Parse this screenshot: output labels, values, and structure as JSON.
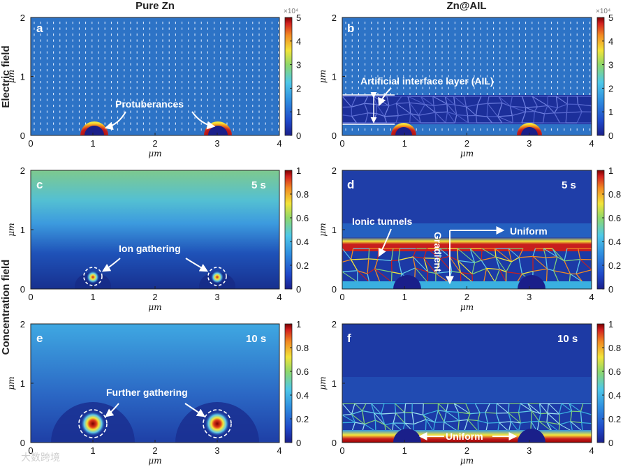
{
  "figure": {
    "column_titles": [
      "Pure Zn",
      "Zn@AIL"
    ],
    "row_labels": [
      "Electric field",
      "Concentration field"
    ],
    "watermark": "大数跨境"
  },
  "colors": {
    "bg_low": "#1f3ea8",
    "bg_mid": "#2e78c8",
    "light_blue": "#5fc8e8",
    "green": "#7ed07a",
    "yellow": "#f5e63a",
    "red": "#c81e1e",
    "dark_red": "#7a0000",
    "dark_navy": "#101f80"
  },
  "chart_data": [
    {
      "type": "heatmap",
      "panel": "a",
      "field": "electric",
      "xlabel": "μm",
      "ylabel": "μm",
      "xlim": [
        0,
        4
      ],
      "ylim": [
        0,
        2
      ],
      "xticks": [
        "0",
        "1",
        "2",
        "3",
        "4"
      ],
      "yticks": [
        "0",
        "1",
        "2"
      ],
      "colorbar": {
        "ticks": [
          "0",
          "1",
          "2",
          "3",
          "4",
          "5"
        ],
        "range": [
          0,
          5
        ],
        "exponent": "×10⁴"
      },
      "protuberance_centers": [
        1,
        3
      ],
      "annotations": [
        {
          "text": "Protuberances"
        }
      ]
    },
    {
      "type": "heatmap",
      "panel": "b",
      "field": "electric",
      "xlabel": "μm",
      "ylabel": "μm",
      "xlim": [
        0,
        4
      ],
      "ylim": [
        0,
        2
      ],
      "xticks": [
        "0",
        "1",
        "2",
        "3",
        "4"
      ],
      "yticks": [
        "0",
        "1",
        "2"
      ],
      "colorbar": {
        "ticks": [
          "0",
          "1",
          "2",
          "3",
          "4",
          "5"
        ],
        "range": [
          0,
          5
        ],
        "exponent": "×10⁴"
      },
      "protuberance_centers": [
        1,
        3
      ],
      "ail_layer_y": [
        0.2,
        0.7
      ],
      "annotations": [
        {
          "text": "Artificial interface layer (AIL)"
        }
      ]
    },
    {
      "type": "heatmap",
      "panel": "c",
      "field": "concentration",
      "time": "5 s",
      "xlabel": "μm",
      "ylabel": "μm",
      "xlim": [
        0,
        4
      ],
      "ylim": [
        0,
        2
      ],
      "xticks": [
        "0",
        "1",
        "2",
        "3",
        "4"
      ],
      "yticks": [
        "0",
        "1",
        "2"
      ],
      "colorbar": {
        "ticks": [
          "0",
          "0.2",
          "0.4",
          "0.6",
          "0.8",
          "1"
        ],
        "range": [
          0,
          1
        ]
      },
      "protuberance_centers": [
        1,
        3
      ],
      "annotations": [
        {
          "text": "Ion gathering"
        }
      ]
    },
    {
      "type": "heatmap",
      "panel": "d",
      "field": "concentration",
      "time": "5 s",
      "xlabel": "μm",
      "ylabel": "μm",
      "xlim": [
        0,
        4
      ],
      "ylim": [
        0,
        2
      ],
      "xticks": [
        "0",
        "1",
        "2",
        "3",
        "4"
      ],
      "yticks": [
        "0",
        "1",
        "2"
      ],
      "colorbar": {
        "ticks": [
          "0",
          "0.2",
          "0.4",
          "0.6",
          "0.8",
          "1"
        ],
        "range": [
          0,
          1
        ]
      },
      "protuberance_centers": [
        1,
        3
      ],
      "annotations": [
        {
          "text": "Ionic tunnels"
        },
        {
          "text": "Gradient"
        },
        {
          "text": "Uniform"
        }
      ]
    },
    {
      "type": "heatmap",
      "panel": "e",
      "field": "concentration",
      "time": "10 s",
      "xlabel": "μm",
      "ylabel": "μm",
      "xlim": [
        0,
        4
      ],
      "ylim": [
        0,
        2
      ],
      "xticks": [
        "0",
        "1",
        "2",
        "3",
        "4"
      ],
      "yticks": [
        "0",
        "1",
        "2"
      ],
      "colorbar": {
        "ticks": [
          "0",
          "0.2",
          "0.4",
          "0.6",
          "0.8",
          "1"
        ],
        "range": [
          0,
          1
        ]
      },
      "protuberance_centers": [
        1,
        3
      ],
      "annotations": [
        {
          "text": "Further gathering"
        }
      ]
    },
    {
      "type": "heatmap",
      "panel": "f",
      "field": "concentration",
      "time": "10 s",
      "xlabel": "μm",
      "ylabel": "μm",
      "xlim": [
        0,
        4
      ],
      "ylim": [
        0,
        2
      ],
      "xticks": [
        "0",
        "1",
        "2",
        "3",
        "4"
      ],
      "yticks": [
        "0",
        "1",
        "2"
      ],
      "colorbar": {
        "ticks": [
          "0",
          "0.2",
          "0.4",
          "0.6",
          "0.8",
          "1"
        ],
        "range": [
          0,
          1
        ]
      },
      "protuberance_centers": [
        1,
        3
      ],
      "annotations": [
        {
          "text": "Uniform"
        }
      ]
    }
  ]
}
